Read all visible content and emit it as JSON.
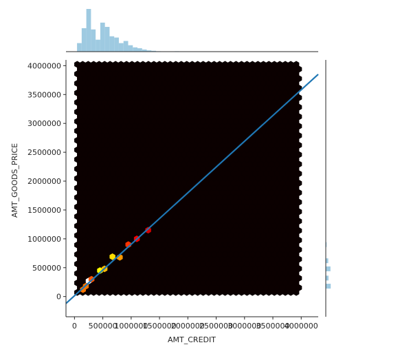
{
  "chart_data": {
    "type": "scatter",
    "subtype": "hexbin jointplot with regression line and marginal histograms",
    "title": "",
    "xlabel": "AMT_CREDIT",
    "ylabel": "AMT_GOODS_PRICE",
    "xlim": [
      -150000,
      4300000
    ],
    "ylim": [
      -350000,
      4100000
    ],
    "x_ticks": [
      0,
      500000,
      1000000,
      1500000,
      2000000,
      2500000,
      3000000,
      3500000,
      4000000
    ],
    "y_ticks": [
      0,
      500000,
      1000000,
      1500000,
      2000000,
      2500000,
      3000000,
      3500000,
      4000000
    ],
    "x_tick_labels": [
      "0",
      "500000",
      "1000000",
      "1500000",
      "2000000",
      "2500000",
      "3000000",
      "3500000",
      "4000000"
    ],
    "y_tick_labels": [
      "0",
      "500000",
      "1000000",
      "1500000",
      "2000000",
      "2500000",
      "3000000",
      "3500000",
      "4000000"
    ],
    "grid": false,
    "colormap": "hot",
    "background_color": "#0b0000",
    "hex_region": {
      "x_range": [
        0,
        4050000
      ],
      "y_range": [
        0,
        4050000
      ]
    },
    "dense_hexbins": [
      {
        "x": 250000,
        "y": 270000,
        "level": 1.0
      },
      {
        "x": 200000,
        "y": 180000,
        "level": 0.55
      },
      {
        "x": 300000,
        "y": 300000,
        "level": 0.5
      },
      {
        "x": 450000,
        "y": 450000,
        "level": 0.75
      },
      {
        "x": 530000,
        "y": 480000,
        "level": 0.65
      },
      {
        "x": 670000,
        "y": 690000,
        "level": 0.7
      },
      {
        "x": 800000,
        "y": 680000,
        "level": 0.6
      },
      {
        "x": 950000,
        "y": 900000,
        "level": 0.45
      },
      {
        "x": 1100000,
        "y": 1000000,
        "level": 0.35
      },
      {
        "x": 1300000,
        "y": 1150000,
        "level": 0.3
      },
      {
        "x": 150000,
        "y": 120000,
        "level": 0.55
      }
    ],
    "regression_line": {
      "color": "#1f77b4",
      "x": [
        -150000,
        4300000
      ],
      "y": [
        -120000,
        3850000
      ]
    },
    "marginal_x_histogram": {
      "color": "#9ecae1",
      "bin_edges_start": 45000,
      "bin_width": 82000,
      "counts": [
        0.2,
        0.55,
        1.0,
        0.52,
        0.28,
        0.68,
        0.58,
        0.36,
        0.33,
        0.2,
        0.25,
        0.15,
        0.1,
        0.08,
        0.05,
        0.03,
        0.02,
        0.01,
        0.0,
        0.0,
        0.0,
        0.01
      ]
    },
    "marginal_y_histogram": {
      "color": "#9ecae1",
      "bins": [
        {
          "y": 180000,
          "count": 0.9
        },
        {
          "y": 320000,
          "count": 0.5
        },
        {
          "y": 480000,
          "count": 0.85
        },
        {
          "y": 620000,
          "count": 0.45
        },
        {
          "y": 900000,
          "count": 0.15
        }
      ]
    }
  }
}
